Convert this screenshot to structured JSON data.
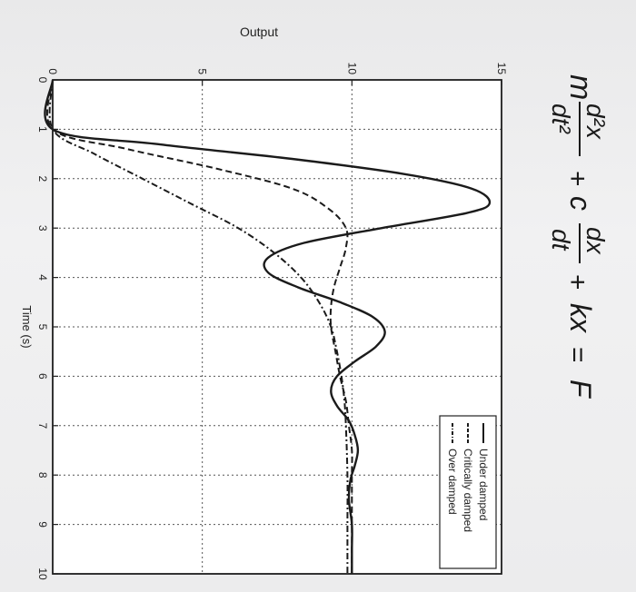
{
  "equation": {
    "m": "m",
    "d2x": "d²x",
    "dt2": "dt²",
    "plus1": "+",
    "c": "c",
    "dx": "dx",
    "dt": "dt",
    "plus2": "+",
    "kx": "kx",
    "equals": "=",
    "F": "F"
  },
  "chart_data": {
    "type": "line",
    "xlabel": "Time (s)",
    "ylabel": "Output",
    "xlim": [
      0,
      10
    ],
    "ylim": [
      0,
      15
    ],
    "xticks": [
      "0",
      "1",
      "2",
      "3",
      "4",
      "5",
      "6",
      "7",
      "8",
      "9",
      "10"
    ],
    "yticks": [
      "0",
      "5",
      "10",
      "15"
    ],
    "grid": true,
    "legend_position": "top-right",
    "series": [
      {
        "name": "Under damped",
        "style": "solid",
        "x": [
          0,
          1.0,
          1.3,
          1.6,
          1.9,
          2.2,
          2.5,
          2.7,
          3.0,
          3.3,
          3.6,
          3.9,
          4.2,
          4.5,
          4.8,
          5.1,
          5.4,
          5.7,
          6.0,
          6.3,
          6.6,
          6.9,
          7.2,
          7.5,
          7.8,
          8.1,
          8.5,
          9.0,
          9.5,
          10.0
        ],
        "y": [
          0,
          0,
          3.5,
          8.0,
          11.7,
          14.0,
          14.6,
          13.8,
          11.0,
          8.4,
          7.2,
          7.2,
          8.2,
          9.6,
          10.7,
          11.1,
          10.8,
          10.1,
          9.5,
          9.3,
          9.5,
          9.9,
          10.1,
          10.2,
          10.1,
          9.95,
          9.9,
          10.0,
          10.0,
          10.0
        ]
      },
      {
        "name": "Critically damped",
        "style": "dashed",
        "x": [
          0,
          1.0,
          1.4,
          1.8,
          2.2,
          2.6,
          3.0,
          3.4,
          3.8,
          4.2,
          4.6,
          5.0,
          5.5,
          6.0,
          6.5,
          7.0,
          7.5,
          8.0,
          9.0,
          10.0
        ],
        "y": [
          0,
          0,
          2.5,
          5.5,
          8.0,
          9.2,
          9.8,
          9.8,
          9.6,
          9.4,
          9.3,
          9.3,
          9.45,
          9.6,
          9.8,
          9.9,
          10.0,
          10.0,
          10.0,
          10.0
        ]
      },
      {
        "name": "Over damped",
        "style": "dash-dot",
        "x": [
          0,
          1.0,
          1.5,
          2.0,
          2.5,
          3.0,
          3.5,
          4.0,
          4.5,
          5.0,
          5.5,
          6.0,
          6.5,
          7.0,
          8.0,
          9.0,
          10.0
        ],
        "y": [
          0,
          0,
          1.4,
          3.0,
          4.6,
          6.2,
          7.4,
          8.3,
          8.9,
          9.3,
          9.5,
          9.65,
          9.75,
          9.8,
          9.85,
          9.85,
          9.85
        ]
      }
    ]
  }
}
